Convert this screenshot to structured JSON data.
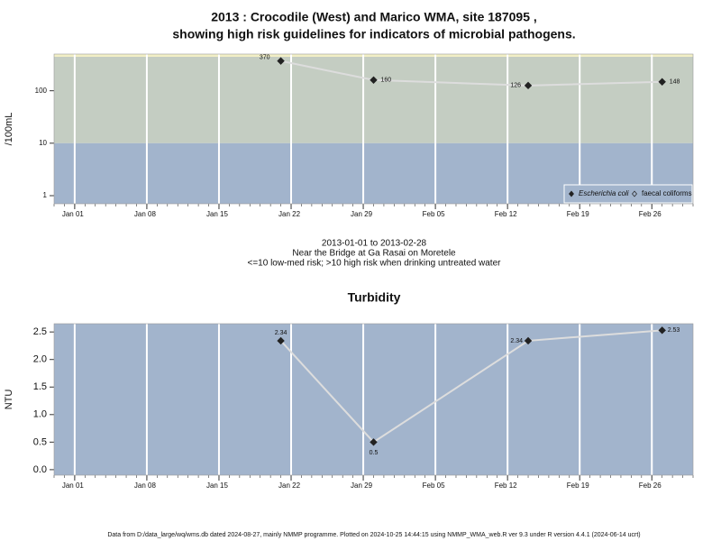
{
  "chart_data": [
    {
      "type": "line",
      "title": [
        "2013 : Crocodile (West) and Marico WMA, site 187095 ,",
        "showing high risk guidelines for indicators of microbial pathogens."
      ],
      "ylabel": "/100mL",
      "log_scale": true,
      "x": [
        "2013-01-21",
        "2013-01-30",
        "2013-02-14",
        "2013-02-27"
      ],
      "series": [
        {
          "name": "Escherichia coli",
          "color": "#222222",
          "marker": "filled-diamond",
          "values": [
            370,
            160,
            126,
            148
          ]
        },
        {
          "name": "faecal coliforms",
          "color": "#222222",
          "marker": "open-diamond",
          "values": [
            null,
            null,
            null,
            null
          ]
        }
      ],
      "line_color": "#dddddd",
      "xlim": [
        "2012-12-30",
        "2013-03-02"
      ],
      "xticks": [
        {
          "value": "2013-01-01",
          "label": "Jan 01"
        },
        {
          "value": "2013-01-08",
          "label": "Jan 08"
        },
        {
          "value": "2013-01-15",
          "label": "Jan 15"
        },
        {
          "value": "2013-01-22",
          "label": "Jan 22"
        },
        {
          "value": "2013-01-29",
          "label": "Jan 29"
        },
        {
          "value": "2013-02-05",
          "label": "Feb 05"
        },
        {
          "value": "2013-02-12",
          "label": "Feb 12"
        },
        {
          "value": "2013-02-19",
          "label": "Feb 19"
        },
        {
          "value": "2013-02-26",
          "label": "Feb 26"
        }
      ],
      "ylim": [
        0.7,
        500
      ],
      "yticks": [
        1,
        10,
        100
      ],
      "threshold": 10,
      "band_colors": [
        "#a2b4cc",
        "#c4cdc2"
      ],
      "legend": "bottom-right",
      "caption": [
        "2013-01-01 to 2013-02-28",
        "Near the Bridge at Ga Rasai on Moretele",
        "<=10 low-med risk; >10 high risk when drinking untreated water"
      ]
    },
    {
      "type": "line",
      "title": [
        "Turbidity"
      ],
      "ylabel": "NTU",
      "log_scale": false,
      "x": [
        "2013-01-21",
        "2013-01-30",
        "2013-02-14",
        "2013-02-27"
      ],
      "series": [
        {
          "name": "Turbidity",
          "color": "#222222",
          "marker": "filled-diamond",
          "values": [
            2.34,
            0.5,
            2.34,
            2.53
          ]
        }
      ],
      "line_color": "#dddddd",
      "xlim": [
        "2012-12-30",
        "2013-03-02"
      ],
      "xticks": [
        {
          "value": "2013-01-01",
          "label": "Jan 01"
        },
        {
          "value": "2013-01-08",
          "label": "Jan 08"
        },
        {
          "value": "2013-01-15",
          "label": "Jan 15"
        },
        {
          "value": "2013-01-22",
          "label": "Jan 22"
        },
        {
          "value": "2013-01-29",
          "label": "Jan 29"
        },
        {
          "value": "2013-02-05",
          "label": "Feb 05"
        },
        {
          "value": "2013-02-12",
          "label": "Feb 12"
        },
        {
          "value": "2013-02-19",
          "label": "Feb 19"
        },
        {
          "value": "2013-02-26",
          "label": "Feb 26"
        }
      ],
      "ylim": [
        -0.1,
        2.65
      ],
      "yticks": [
        {
          "value": 0,
          "label": "0.0"
        },
        {
          "value": 0.5,
          "label": "0.5"
        },
        {
          "value": 1,
          "label": "1.0"
        },
        {
          "value": 1.5,
          "label": "1.5"
        },
        {
          "value": 2,
          "label": "2.0"
        },
        {
          "value": 2.5,
          "label": "2.5"
        }
      ],
      "background": "#a2b4cc",
      "source": "Data from D:/data_large/wq/wms.db dated 2024-08-27, mainly NMMP programme. Plotted on 2024-10-25 14:44:15 using NMMP_WMA_web.R ver 9.3 under R version 4.4.1 (2024-06-14 ucrt)"
    }
  ]
}
